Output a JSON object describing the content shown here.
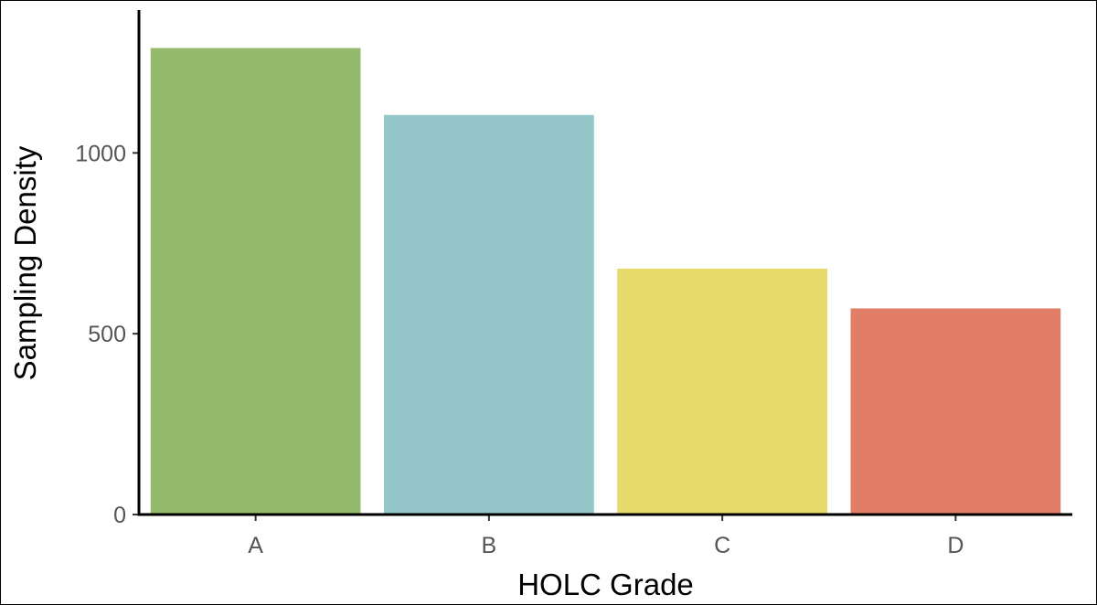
{
  "chart_data": {
    "type": "bar",
    "categories": [
      "A",
      "B",
      "C",
      "D"
    ],
    "values": [
      1290,
      1105,
      680,
      570
    ],
    "colors": [
      "#93bb6b",
      "#95c6c9",
      "#e6da6b",
      "#e27d67"
    ],
    "xlabel": "HOLC Grade",
    "ylabel": "Sampling Density",
    "ylim": [
      0,
      1390
    ],
    "yticks": [
      0,
      500,
      1000
    ],
    "grid": false,
    "legend": "none"
  }
}
